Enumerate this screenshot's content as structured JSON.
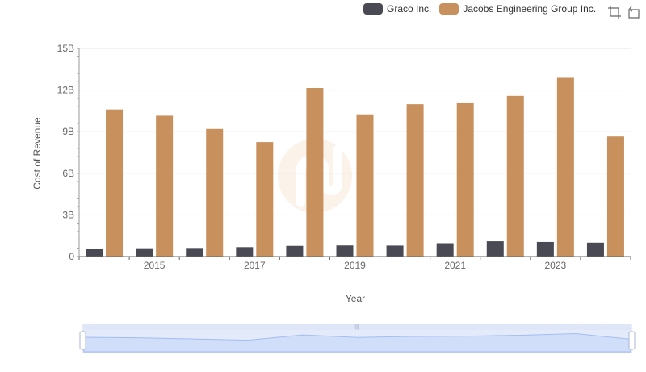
{
  "chart_data": {
    "type": "bar",
    "title": "",
    "xlabel": "Year",
    "ylabel": "Cost of Revenue",
    "x_tick_labels": [
      "2015",
      "2017",
      "2019",
      "2021",
      "2023"
    ],
    "y_tick_labels": [
      "0",
      "3B",
      "6B",
      "9B",
      "12B",
      "15B"
    ],
    "ylim": [
      0,
      15000000000
    ],
    "categories": [
      "2014",
      "2015",
      "2016",
      "2017",
      "2018",
      "2019",
      "2020",
      "2021",
      "2022",
      "2023",
      "2024"
    ],
    "series": [
      {
        "name": "Graco Inc.",
        "color": "#4a4a55",
        "values": [
          550000000,
          600000000,
          620000000,
          680000000,
          770000000,
          800000000,
          790000000,
          960000000,
          1100000000,
          1050000000,
          1000000000
        ]
      },
      {
        "name": "Jacobs Engineering Group Inc.",
        "color": "#c8905c",
        "values": [
          10600000000,
          10150000000,
          9200000000,
          8250000000,
          12150000000,
          10250000000,
          10980000000,
          11050000000,
          11580000000,
          12880000000,
          8650000000
        ]
      }
    ],
    "grid": true,
    "legend_position": "top-right"
  },
  "toolbox": {
    "zoom_icon": "zoom-select-icon",
    "reset_icon": "zoom-reset-icon"
  }
}
